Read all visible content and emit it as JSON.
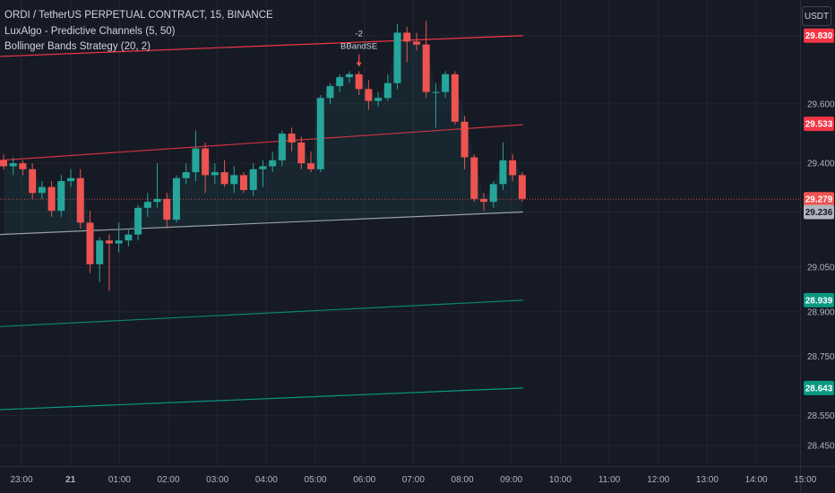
{
  "header": {
    "symbol_line": "ORDI / TetherUS PERPETUAL CONTRACT, 15, BINANCE",
    "indicator_1": "LuxAlgo - Predictive Channels (5, 50)",
    "indicator_2": "Bollinger Bands Strategy (20, 2)",
    "currency_button": "USDT"
  },
  "colors": {
    "background": "#161a25",
    "grid": "#232632",
    "up": "#26a69a",
    "down": "#ef5350",
    "resistance": "#f23645",
    "support": "#089981",
    "average": "#b2b5be",
    "axis_text": "#b2b5be"
  },
  "chart_data": {
    "type": "candlestick",
    "symbol": "ORDI / TetherUS PERPETUAL CONTRACT",
    "timeframe": "15",
    "exchange": "BINANCE",
    "ylim": [
      28.38,
      29.95
    ],
    "y_ticks": [
      "29.830",
      "29.600",
      "29.400",
      "29.236",
      "29.050",
      "28.900",
      "28.750",
      "28.550",
      "28.450"
    ],
    "x_ticks": [
      "23:00",
      "21",
      "01:00",
      "02:00",
      "03:00",
      "04:00",
      "05:00",
      "06:00",
      "07:00",
      "08:00",
      "09:00",
      "10:00",
      "11:00",
      "12:00",
      "13:00",
      "14:00",
      "15:00"
    ],
    "candles": [
      {
        "o": 29.41,
        "h": 29.43,
        "l": 29.38,
        "c": 29.39
      },
      {
        "o": 29.39,
        "h": 29.42,
        "l": 29.36,
        "c": 29.4
      },
      {
        "o": 29.4,
        "h": 29.41,
        "l": 29.36,
        "c": 29.38
      },
      {
        "o": 29.38,
        "h": 29.4,
        "l": 29.28,
        "c": 29.3
      },
      {
        "o": 29.3,
        "h": 29.34,
        "l": 29.28,
        "c": 29.32
      },
      {
        "o": 29.32,
        "h": 29.34,
        "l": 29.22,
        "c": 29.24
      },
      {
        "o": 29.24,
        "h": 29.36,
        "l": 29.22,
        "c": 29.34
      },
      {
        "o": 29.34,
        "h": 29.38,
        "l": 29.32,
        "c": 29.35
      },
      {
        "o": 29.35,
        "h": 29.38,
        "l": 29.18,
        "c": 29.2
      },
      {
        "o": 29.2,
        "h": 29.24,
        "l": 29.03,
        "c": 29.06
      },
      {
        "o": 29.06,
        "h": 29.15,
        "l": 29.0,
        "c": 29.14
      },
      {
        "o": 29.14,
        "h": 29.16,
        "l": 28.97,
        "c": 29.13
      },
      {
        "o": 29.13,
        "h": 29.2,
        "l": 29.1,
        "c": 29.14
      },
      {
        "o": 29.14,
        "h": 29.18,
        "l": 29.12,
        "c": 29.16
      },
      {
        "o": 29.16,
        "h": 29.26,
        "l": 29.14,
        "c": 29.25
      },
      {
        "o": 29.25,
        "h": 29.3,
        "l": 29.22,
        "c": 29.27
      },
      {
        "o": 29.27,
        "h": 29.4,
        "l": 29.25,
        "c": 29.28
      },
      {
        "o": 29.28,
        "h": 29.3,
        "l": 29.18,
        "c": 29.21
      },
      {
        "o": 29.21,
        "h": 29.36,
        "l": 29.2,
        "c": 29.35
      },
      {
        "o": 29.35,
        "h": 29.4,
        "l": 29.33,
        "c": 29.37
      },
      {
        "o": 29.37,
        "h": 29.51,
        "l": 29.34,
        "c": 29.45
      },
      {
        "o": 29.45,
        "h": 29.47,
        "l": 29.3,
        "c": 29.36
      },
      {
        "o": 29.36,
        "h": 29.4,
        "l": 29.33,
        "c": 29.37
      },
      {
        "o": 29.37,
        "h": 29.41,
        "l": 29.32,
        "c": 29.33
      },
      {
        "o": 29.33,
        "h": 29.39,
        "l": 29.3,
        "c": 29.36
      },
      {
        "o": 29.36,
        "h": 29.37,
        "l": 29.3,
        "c": 29.31
      },
      {
        "o": 29.31,
        "h": 29.4,
        "l": 29.29,
        "c": 29.38
      },
      {
        "o": 29.38,
        "h": 29.41,
        "l": 29.32,
        "c": 29.39
      },
      {
        "o": 29.39,
        "h": 29.44,
        "l": 29.37,
        "c": 29.41
      },
      {
        "o": 29.41,
        "h": 29.51,
        "l": 29.39,
        "c": 29.5
      },
      {
        "o": 29.5,
        "h": 29.52,
        "l": 29.44,
        "c": 29.47
      },
      {
        "o": 29.47,
        "h": 29.49,
        "l": 29.38,
        "c": 29.4
      },
      {
        "o": 29.4,
        "h": 29.44,
        "l": 29.37,
        "c": 29.38
      },
      {
        "o": 29.38,
        "h": 29.63,
        "l": 29.37,
        "c": 29.62
      },
      {
        "o": 29.62,
        "h": 29.67,
        "l": 29.6,
        "c": 29.66
      },
      {
        "o": 29.66,
        "h": 29.7,
        "l": 29.64,
        "c": 29.69
      },
      {
        "o": 29.69,
        "h": 29.71,
        "l": 29.67,
        "c": 29.7
      },
      {
        "o": 29.7,
        "h": 29.71,
        "l": 29.63,
        "c": 29.65
      },
      {
        "o": 29.65,
        "h": 29.68,
        "l": 29.58,
        "c": 29.61
      },
      {
        "o": 29.61,
        "h": 29.64,
        "l": 29.59,
        "c": 29.62
      },
      {
        "o": 29.62,
        "h": 29.7,
        "l": 29.61,
        "c": 29.67
      },
      {
        "o": 29.67,
        "h": 29.87,
        "l": 29.65,
        "c": 29.84
      },
      {
        "o": 29.84,
        "h": 29.86,
        "l": 29.74,
        "c": 29.81
      },
      {
        "o": 29.81,
        "h": 29.84,
        "l": 29.78,
        "c": 29.8
      },
      {
        "o": 29.8,
        "h": 29.88,
        "l": 29.62,
        "c": 29.64
      },
      {
        "o": 29.64,
        "h": 29.67,
        "l": 29.52,
        "c": 29.64
      },
      {
        "o": 29.64,
        "h": 29.71,
        "l": 29.62,
        "c": 29.7
      },
      {
        "o": 29.7,
        "h": 29.71,
        "l": 29.53,
        "c": 29.54
      },
      {
        "o": 29.54,
        "h": 29.56,
        "l": 29.38,
        "c": 29.42
      },
      {
        "o": 29.42,
        "h": 29.43,
        "l": 29.27,
        "c": 29.28
      },
      {
        "o": 29.28,
        "h": 29.3,
        "l": 29.24,
        "c": 29.27
      },
      {
        "o": 29.27,
        "h": 29.34,
        "l": 29.25,
        "c": 29.33
      },
      {
        "o": 29.33,
        "h": 29.47,
        "l": 29.31,
        "c": 29.41
      },
      {
        "o": 29.41,
        "h": 29.43,
        "l": 29.34,
        "c": 29.36
      },
      {
        "o": 29.36,
        "h": 29.37,
        "l": 29.27,
        "c": 29.28
      }
    ],
    "lines": [
      {
        "name": "resistance-2",
        "from": 29.76,
        "to": 29.83
      },
      {
        "name": "resistance-1",
        "from": 29.41,
        "to": 29.53
      },
      {
        "name": "average",
        "from": 29.16,
        "to": 29.236
      },
      {
        "name": "support-1",
        "from": 28.85,
        "to": 28.939
      },
      {
        "name": "support-2",
        "from": 28.57,
        "to": 28.643
      }
    ],
    "price_tags": [
      {
        "value": 29.83,
        "label": "29.830",
        "role": "resistance-2"
      },
      {
        "value": 29.533,
        "label": "29.533",
        "role": "resistance-1"
      },
      {
        "value": 29.279,
        "label": "29.279",
        "role": "last-price"
      },
      {
        "value": 29.236,
        "label": "29.236",
        "role": "average"
      },
      {
        "value": 28.939,
        "label": "28.939",
        "role": "support-1"
      },
      {
        "value": 28.643,
        "label": "28.643",
        "role": "support-2"
      }
    ],
    "signal": {
      "candle_index": 37,
      "line1": "-2",
      "line2": "BBandSE"
    }
  }
}
